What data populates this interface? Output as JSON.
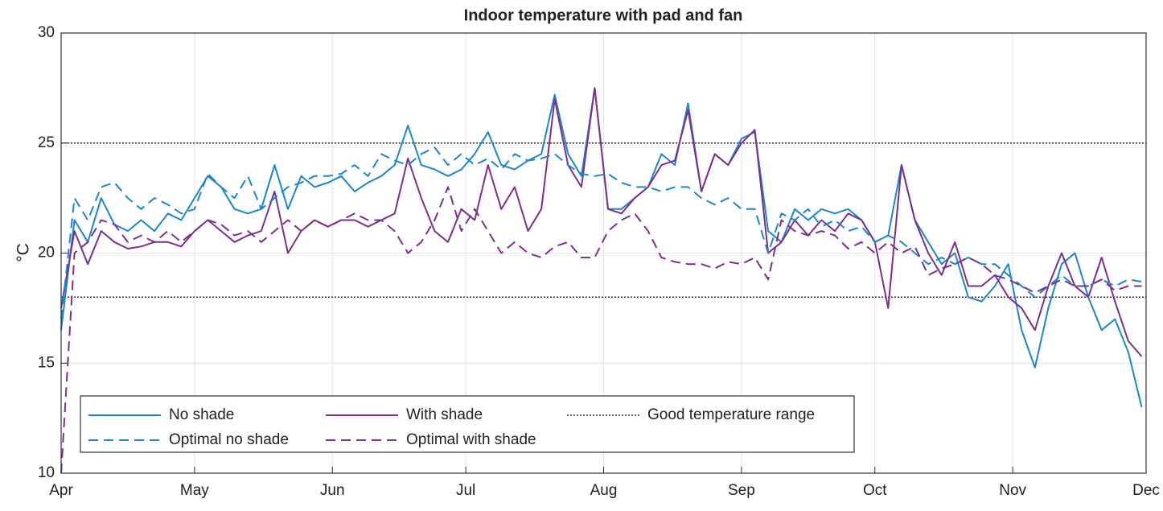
{
  "chart_data": {
    "type": "line",
    "title": "Indoor temperature with pad and fan",
    "y_label": "°C",
    "x": [
      0,
      3,
      6,
      9,
      12,
      15,
      18,
      21,
      24,
      27,
      30,
      33,
      36,
      39,
      42,
      45,
      48,
      51,
      54,
      57,
      60,
      63,
      66,
      69,
      72,
      75,
      78,
      81,
      84,
      87,
      90,
      93,
      96,
      99,
      102,
      105,
      108,
      111,
      114,
      117,
      120,
      123,
      126,
      129,
      132,
      135,
      138,
      141,
      144,
      147,
      150,
      153,
      156,
      159,
      162,
      165,
      168,
      171,
      174,
      177,
      180,
      183,
      186,
      189,
      192,
      195,
      198,
      201,
      204,
      207,
      210,
      213,
      216,
      219,
      222,
      225,
      228,
      231,
      234,
      237,
      240,
      243
    ],
    "xlim": [
      0,
      244
    ],
    "xticks": [
      {
        "value": 0,
        "label": "Apr"
      },
      {
        "value": 30,
        "label": "May"
      },
      {
        "value": 61,
        "label": "Jun"
      },
      {
        "value": 91,
        "label": "Jul"
      },
      {
        "value": 122,
        "label": "Aug"
      },
      {
        "value": 153,
        "label": "Sep"
      },
      {
        "value": 183,
        "label": "Oct"
      },
      {
        "value": 214,
        "label": "Nov"
      },
      {
        "value": 244,
        "label": "Dec"
      }
    ],
    "ylim": [
      10,
      30
    ],
    "yticks": [
      10,
      15,
      20,
      25,
      30
    ],
    "grid": true,
    "legend": "southwest",
    "series": [
      {
        "name": "No shade",
        "color": "#1a86cf",
        "line_style": "solid",
        "values": [
          16.5,
          21.5,
          20.5,
          22.5,
          21.3,
          21.0,
          21.5,
          21.0,
          21.8,
          21.5,
          22.5,
          23.5,
          23.0,
          22.0,
          21.8,
          22.0,
          24.0,
          22.0,
          23.5,
          23.0,
          23.2,
          23.5,
          22.8,
          23.2,
          23.5,
          24.0,
          25.8,
          24.0,
          23.8,
          23.5,
          23.8,
          24.5,
          25.5,
          24.0,
          23.8,
          24.2,
          24.5,
          27.2,
          24.5,
          23.5,
          27.5,
          22.0,
          22.0,
          22.5,
          23.0,
          24.5,
          24.0,
          26.8,
          22.8,
          24.5,
          24.0,
          25.2,
          25.5,
          21.0,
          20.5,
          22.0,
          21.5,
          22.0,
          21.8,
          22.0,
          21.5,
          20.5,
          20.8,
          24.0,
          21.5,
          20.5,
          19.5,
          20.0,
          18.0,
          17.8,
          18.5,
          19.5,
          16.5,
          14.8,
          17.5,
          19.5,
          20.0,
          18.0,
          16.5,
          17.0,
          15.5,
          13.0
        ]
      },
      {
        "name": "With shade",
        "color": "#7e2f8e",
        "line_style": "solid",
        "values": [
          17.5,
          21.0,
          19.5,
          21.0,
          20.5,
          20.2,
          20.3,
          20.5,
          20.5,
          20.3,
          21.0,
          21.5,
          21.0,
          20.5,
          20.8,
          21.0,
          22.8,
          20.0,
          21.0,
          21.5,
          21.2,
          21.5,
          21.5,
          21.2,
          21.5,
          21.8,
          24.3,
          22.5,
          21.0,
          20.5,
          22.0,
          21.5,
          24.0,
          22.0,
          23.0,
          21.0,
          22.0,
          27.0,
          24.0,
          23.0,
          27.5,
          22.0,
          21.8,
          22.5,
          23.0,
          24.0,
          24.2,
          26.5,
          22.8,
          24.5,
          24.0,
          25.0,
          25.6,
          20.0,
          20.5,
          21.5,
          20.8,
          21.5,
          21.0,
          21.8,
          21.5,
          20.5,
          17.5,
          24.0,
          21.5,
          20.0,
          19.0,
          20.5,
          18.5,
          18.5,
          19.0,
          18.0,
          17.5,
          16.5,
          18.5,
          20.0,
          18.5,
          18.0,
          19.8,
          17.8,
          16.0,
          15.3
        ]
      },
      {
        "name": "Optimal no shade",
        "color": "#1a86cf",
        "line_style": "dashed",
        "values": [
          17.0,
          22.5,
          21.5,
          23.0,
          23.2,
          22.5,
          22.0,
          22.5,
          22.2,
          21.8,
          22.0,
          23.6,
          23.0,
          22.5,
          23.5,
          22.0,
          22.5,
          23.0,
          23.2,
          23.5,
          23.5,
          23.6,
          24.0,
          23.5,
          24.5,
          24.2,
          24.0,
          24.5,
          24.8,
          24.0,
          24.5,
          24.0,
          24.3,
          23.8,
          24.5,
          24.2,
          24.3,
          24.5,
          24.0,
          23.6,
          23.5,
          23.6,
          23.2,
          23.0,
          23.0,
          22.8,
          23.0,
          23.0,
          22.5,
          22.2,
          22.5,
          22.0,
          22.0,
          20.0,
          21.8,
          21.5,
          22.0,
          21.2,
          21.5,
          21.0,
          21.2,
          20.5,
          20.8,
          20.5,
          20.0,
          19.5,
          19.8,
          19.5,
          19.8,
          19.5,
          19.5,
          19.0,
          18.5,
          18.0,
          18.5,
          19.0,
          18.5,
          18.5,
          18.8,
          18.5,
          18.8,
          18.7
        ]
      },
      {
        "name": "Optimal with shade",
        "color": "#7e2f8e",
        "line_style": "dashed",
        "values": [
          10.0,
          20.0,
          20.5,
          21.5,
          21.3,
          20.5,
          20.8,
          20.5,
          21.0,
          20.5,
          21.0,
          21.5,
          21.3,
          20.8,
          21.0,
          20.5,
          21.0,
          21.5,
          21.0,
          21.5,
          21.2,
          21.5,
          21.8,
          21.5,
          21.5,
          21.0,
          20.0,
          20.5,
          21.5,
          23.0,
          21.0,
          22.0,
          21.0,
          20.0,
          20.5,
          20.0,
          19.8,
          20.3,
          20.5,
          19.8,
          19.8,
          21.0,
          21.5,
          21.8,
          21.0,
          19.8,
          19.6,
          19.5,
          19.5,
          19.3,
          19.6,
          19.5,
          19.8,
          18.8,
          21.5,
          21.0,
          20.8,
          21.0,
          20.8,
          20.2,
          20.5,
          20.0,
          20.5,
          20.0,
          20.3,
          19.0,
          19.3,
          19.5,
          19.8,
          19.5,
          19.0,
          18.8,
          18.5,
          18.2,
          18.5,
          18.8,
          18.5,
          18.5,
          18.8,
          18.3,
          18.5,
          18.5
        ]
      }
    ],
    "reference_lines": {
      "name": "Good temperature range",
      "color": "#333333",
      "line_style": "dotted",
      "values": [
        18,
        25
      ]
    }
  }
}
